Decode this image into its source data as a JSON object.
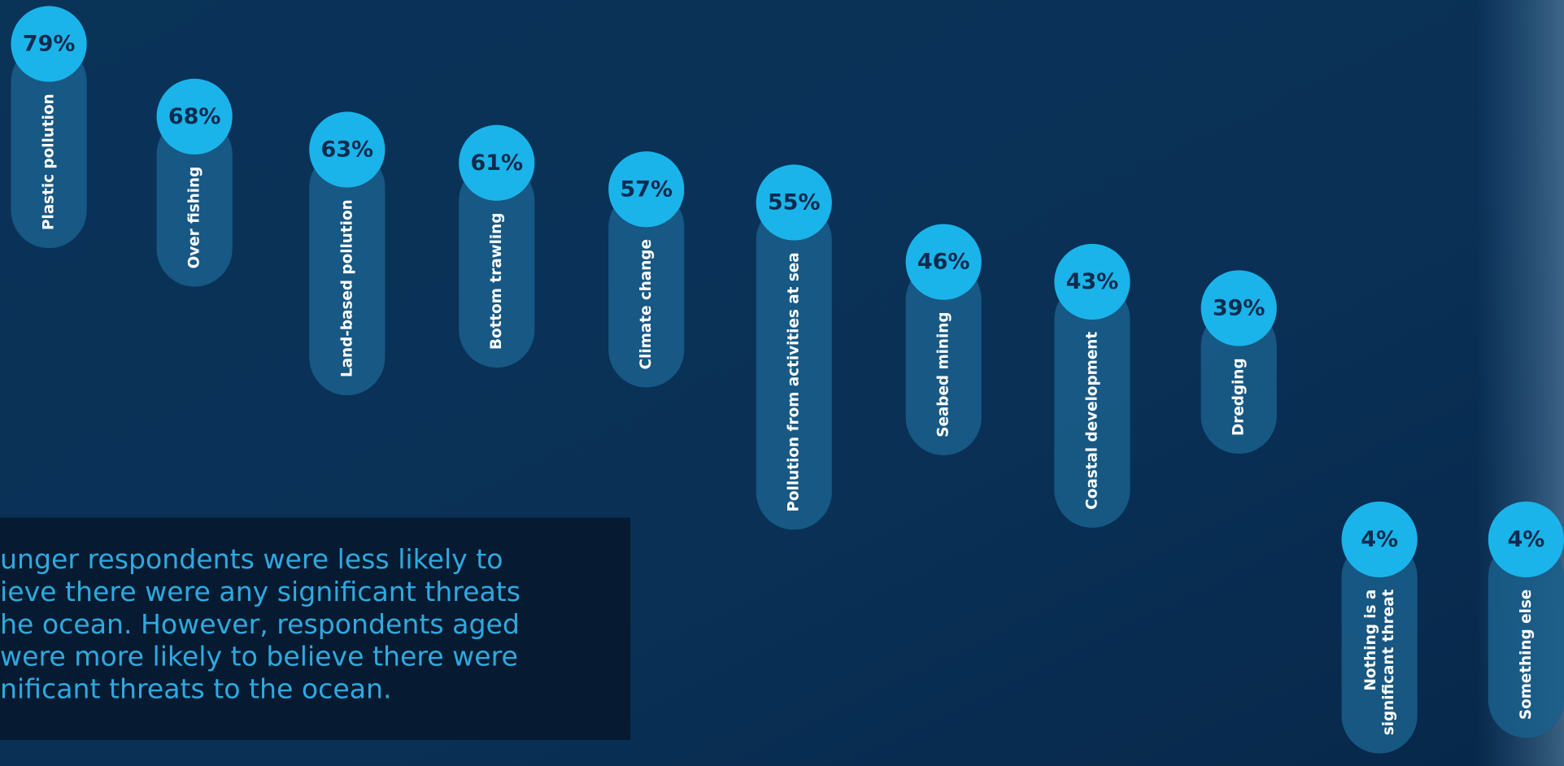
{
  "chart_data": {
    "type": "bar",
    "categories": [
      "Plastic pollution",
      "Over fishing",
      "Land-based pollution",
      "Bottom trawling",
      "Climate change",
      "Pollution from activities at sea",
      "Seabed mining",
      "Coastal development",
      "Dredging",
      "Nothing is a\nsignificant threat",
      "Something else"
    ],
    "values": [
      79,
      68,
      63,
      61,
      57,
      55,
      46,
      43,
      39,
      4,
      4
    ],
    "value_labels": [
      "79%",
      "68%",
      "63%",
      "61%",
      "57%",
      "55%",
      "46%",
      "43%",
      "39%",
      "4%",
      "4%"
    ],
    "color": "#1ab4ea",
    "annotation": [
      "unger respondents were less likely to",
      "ieve there were any significant threats",
      "he ocean. However, respondents aged",
      "were more likely to believe there were",
      "nificant threats to the ocean."
    ]
  }
}
